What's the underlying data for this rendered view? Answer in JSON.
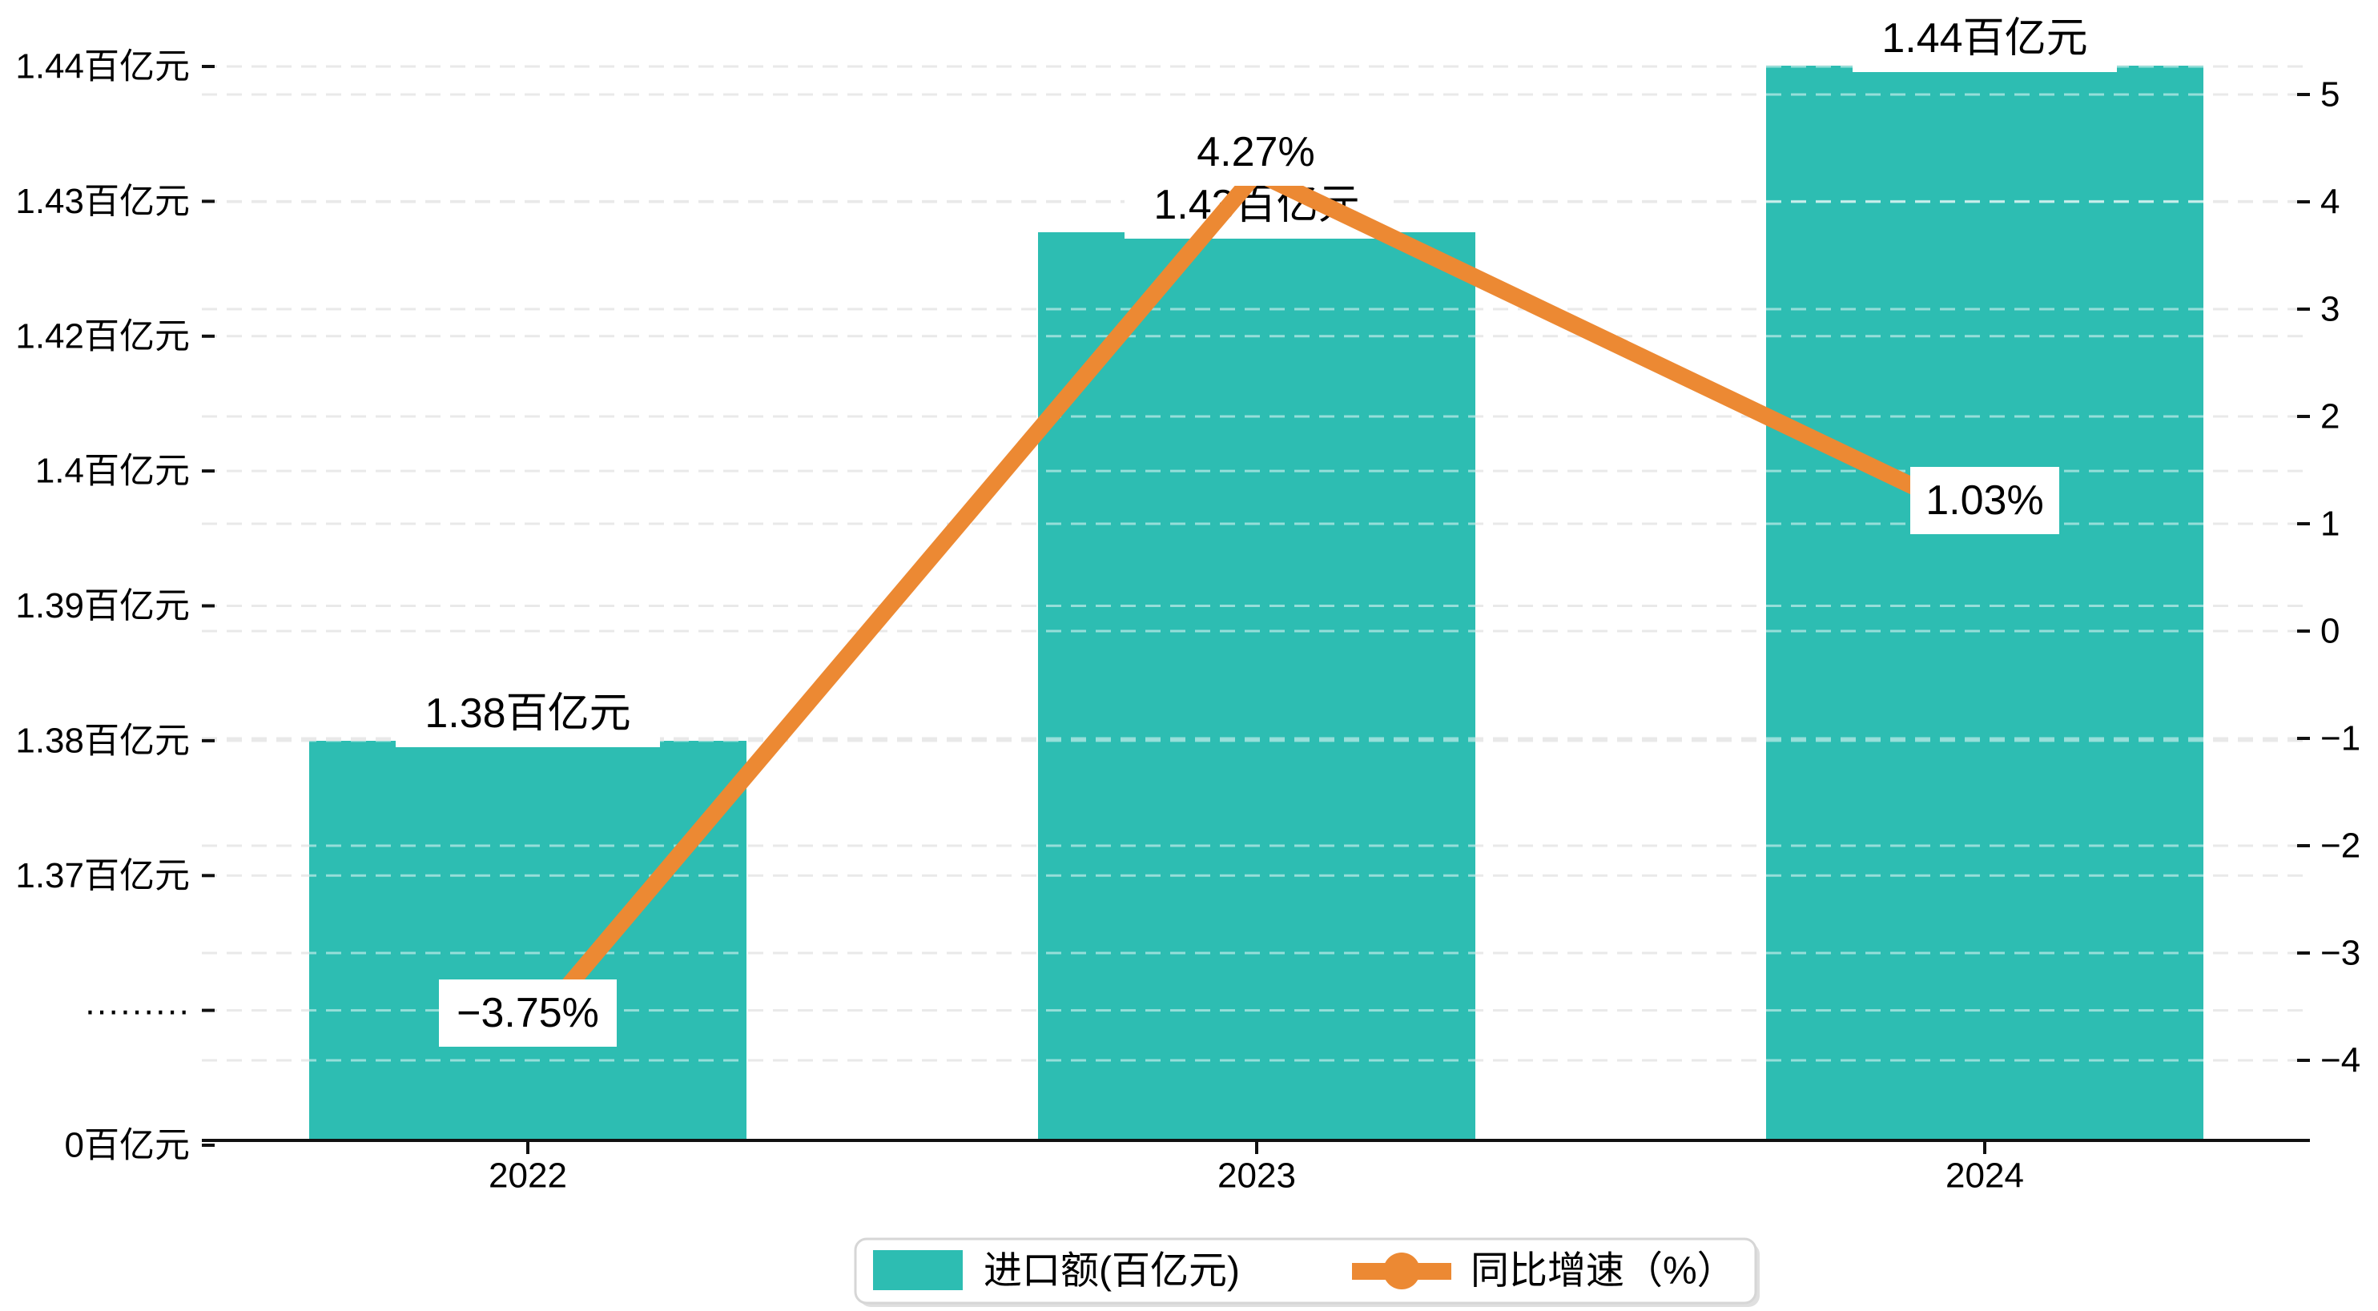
{
  "chart_data": {
    "type": "combo",
    "title": "",
    "categories": [
      "2022",
      "2023",
      "2024"
    ],
    "series": [
      {
        "name": "进口额(百亿元)",
        "type": "bar",
        "unit": "百亿元",
        "values": [
          1.38,
          1.43,
          1.44
        ],
        "point_labels": [
          "1.38百亿元",
          "1.43百亿元",
          "1.44百亿元"
        ],
        "color": "#2dbdb2"
      },
      {
        "name": "同比增速（%）",
        "type": "line",
        "unit": "%",
        "values": [
          -3.75,
          4.27,
          1.03
        ],
        "point_labels": [
          "−3.75%",
          "4.27%",
          "1.03%"
        ],
        "color": "#ec8933"
      }
    ],
    "left_axis": {
      "tick_labels": [
        "1.44百亿元",
        "1.43百亿元",
        "1.42百亿元",
        "1.4百亿元",
        "1.39百亿元",
        "1.38百亿元",
        "1.37百亿元",
        "·········",
        "0百亿元"
      ],
      "has_break": true,
      "break_label": "·········"
    },
    "right_axis": {
      "tick_labels": [
        "5",
        "4",
        "3",
        "2",
        "1",
        "0",
        "−1",
        "−2",
        "−3",
        "−4"
      ],
      "tick_values": [
        5,
        4,
        3,
        2,
        1,
        0,
        -1,
        -2,
        -3,
        -4
      ],
      "range": [
        -4,
        5
      ]
    },
    "grid": true,
    "legend_position": "bottom"
  },
  "legend": {
    "items": [
      {
        "label": "进口额(百亿元)",
        "marker": "rect",
        "color": "#2dbdb2"
      },
      {
        "label": "同比增速（%）",
        "marker": "line-dot",
        "color": "#ec8933"
      }
    ]
  },
  "colors": {
    "bar": "#2dbdb2",
    "line": "#ec8933",
    "gridline": "#e9e9e9",
    "gridline_over_bar": "rgba(255,255,255,0.5)",
    "axis": "#111111",
    "text": "#000000",
    "label_box": "#ffffff",
    "legend_border": "#d6d6d6",
    "legend_shadow": "#dfdfdf"
  }
}
